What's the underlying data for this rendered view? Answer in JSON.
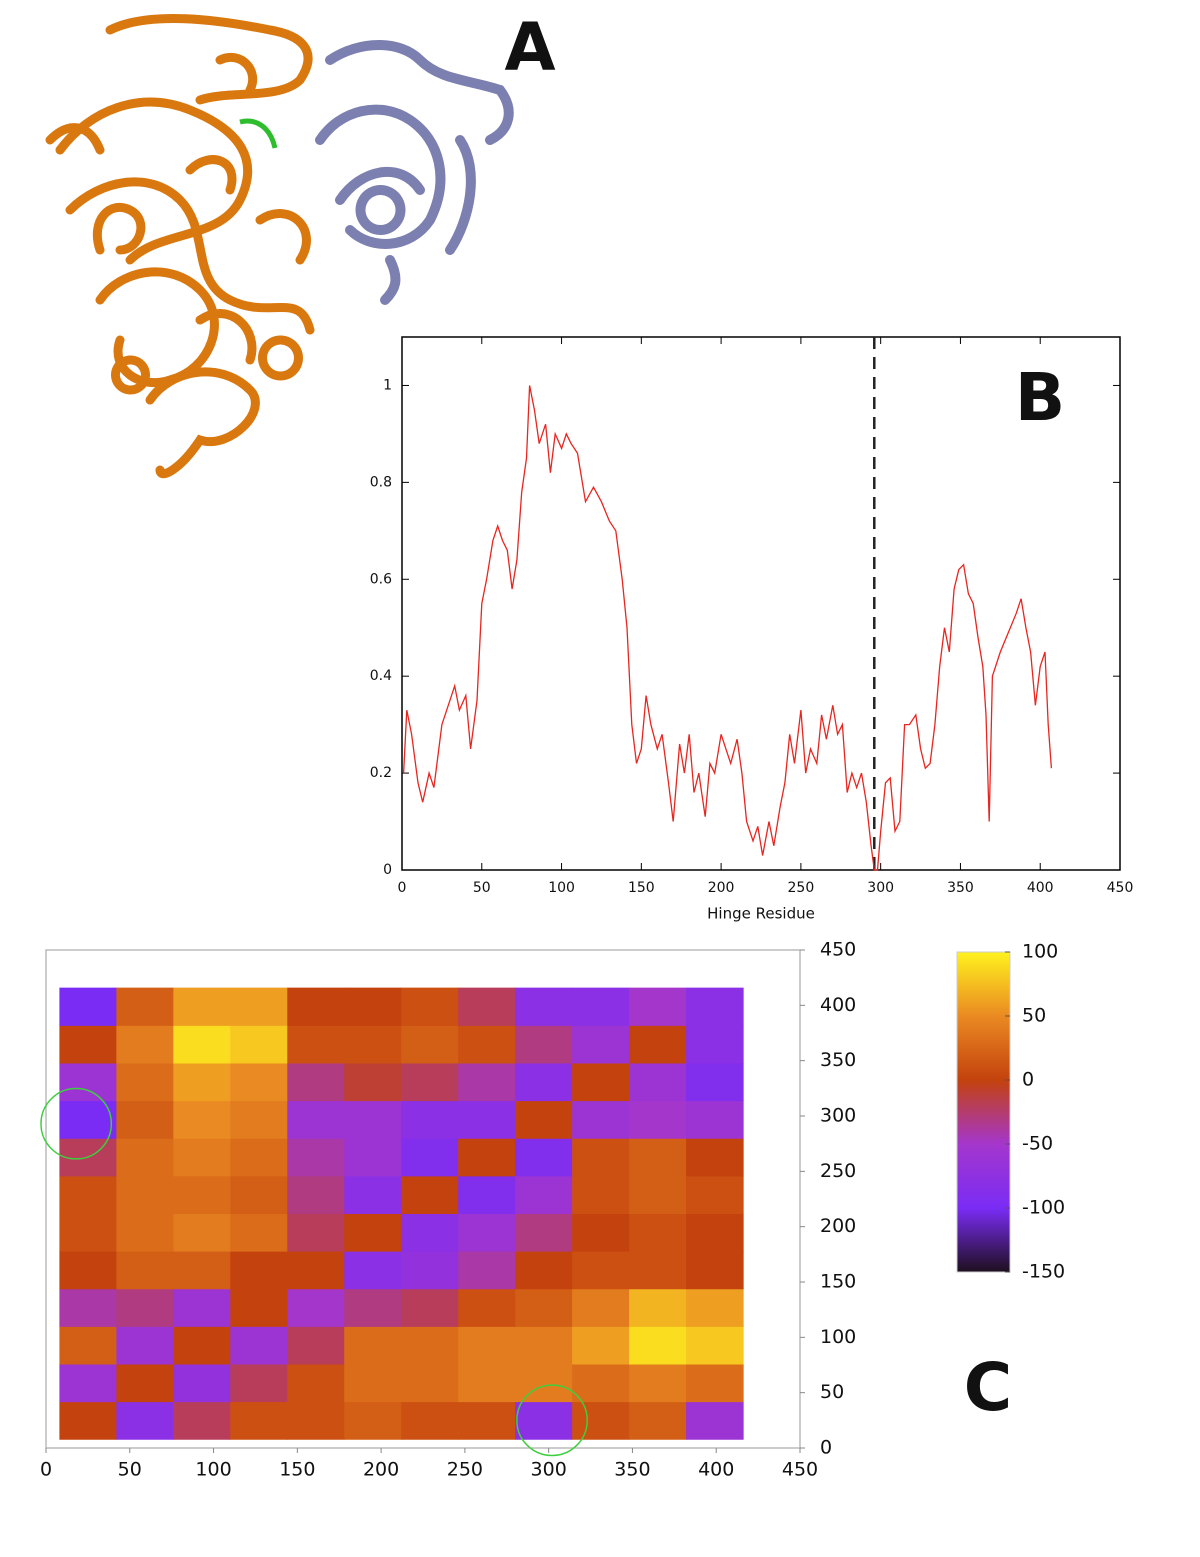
{
  "figure": {
    "panel_a": "A"
  },
  "chart_data": [
    {
      "type": "line",
      "panel_label": "B",
      "xlabel": "Hinge Residue",
      "color": "#e8251f",
      "x": [
        1,
        3,
        6,
        10,
        13,
        17,
        20,
        25,
        30,
        33,
        36,
        40,
        43,
        47,
        50,
        53,
        57,
        60,
        63,
        66,
        69,
        72,
        75,
        78,
        80,
        83,
        86,
        90,
        93,
        96,
        100,
        103,
        106,
        110,
        115,
        120,
        125,
        130,
        134,
        138,
        141,
        144,
        147,
        150,
        153,
        156,
        160,
        163,
        167,
        170,
        174,
        177,
        180,
        183,
        186,
        190,
        193,
        196,
        200,
        203,
        206,
        210,
        213,
        216,
        220,
        223,
        226,
        230,
        233,
        237,
        240,
        243,
        246,
        250,
        253,
        256,
        260,
        263,
        266,
        270,
        273,
        276,
        279,
        282,
        285,
        288,
        291,
        294,
        296,
        298,
        300,
        303,
        306,
        309,
        312,
        315,
        318,
        322,
        325,
        328,
        331,
        334,
        337,
        340,
        343,
        346,
        349,
        352,
        355,
        358,
        361,
        364,
        366,
        368,
        370,
        375,
        380,
        385,
        388,
        391,
        394,
        397,
        400,
        403,
        405,
        407
      ],
      "values": [
        0.2,
        0.33,
        0.28,
        0.18,
        0.14,
        0.2,
        0.17,
        0.3,
        0.35,
        0.38,
        0.33,
        0.36,
        0.25,
        0.35,
        0.55,
        0.6,
        0.68,
        0.71,
        0.68,
        0.66,
        0.58,
        0.64,
        0.78,
        0.85,
        1.0,
        0.95,
        0.88,
        0.92,
        0.82,
        0.9,
        0.87,
        0.9,
        0.88,
        0.86,
        0.76,
        0.79,
        0.76,
        0.72,
        0.7,
        0.6,
        0.5,
        0.3,
        0.22,
        0.25,
        0.36,
        0.3,
        0.25,
        0.28,
        0.18,
        0.1,
        0.26,
        0.2,
        0.28,
        0.16,
        0.2,
        0.11,
        0.22,
        0.2,
        0.28,
        0.25,
        0.22,
        0.27,
        0.2,
        0.1,
        0.06,
        0.09,
        0.03,
        0.1,
        0.05,
        0.13,
        0.18,
        0.28,
        0.22,
        0.33,
        0.2,
        0.25,
        0.22,
        0.32,
        0.27,
        0.34,
        0.28,
        0.3,
        0.16,
        0.2,
        0.17,
        0.2,
        0.14,
        0.05,
        0,
        0,
        0.08,
        0.18,
        0.19,
        0.08,
        0.1,
        0.3,
        0.3,
        0.32,
        0.25,
        0.21,
        0.22,
        0.3,
        0.42,
        0.5,
        0.45,
        0.58,
        0.62,
        0.63,
        0.57,
        0.55,
        0.48,
        0.42,
        0.32,
        0.1,
        0.4,
        0.45,
        0.49,
        0.53,
        0.56,
        0.5,
        0.45,
        0.34,
        0.42,
        0.45,
        0.3,
        0.21
      ],
      "vline": 296,
      "xlim": [
        0,
        450
      ],
      "xticks": [
        0,
        50,
        100,
        150,
        200,
        250,
        300,
        350,
        400,
        450
      ],
      "ylim": [
        0,
        1.1
      ],
      "yticks": [
        0,
        0.2,
        0.4,
        0.6,
        0.8,
        1
      ]
    },
    {
      "type": "heatmap",
      "panel_label": "C",
      "x": [
        25,
        59,
        93,
        127,
        161,
        195,
        229,
        263,
        297,
        331,
        365,
        399
      ],
      "y": [
        25,
        59,
        93,
        127,
        161,
        195,
        229,
        263,
        297,
        331,
        365,
        399
      ],
      "z": [
        [
          0,
          -80,
          -20,
          10,
          10,
          20,
          10,
          10,
          -80,
          10,
          20,
          -60
        ],
        [
          -60,
          0,
          -70,
          -20,
          10,
          30,
          30,
          40,
          40,
          30,
          40,
          30
        ],
        [
          20,
          -60,
          0,
          -60,
          -20,
          30,
          30,
          40,
          40,
          60,
          90,
          80
        ],
        [
          -40,
          -30,
          -60,
          0,
          -50,
          -30,
          -20,
          10,
          20,
          40,
          70,
          60
        ],
        [
          0,
          20,
          20,
          0,
          0,
          -80,
          -70,
          -40,
          0,
          10,
          10,
          0
        ],
        [
          10,
          30,
          40,
          30,
          -20,
          0,
          -80,
          -60,
          -30,
          0,
          10,
          0
        ],
        [
          10,
          30,
          30,
          20,
          -30,
          -80,
          0,
          -90,
          -60,
          10,
          20,
          10
        ],
        [
          -20,
          30,
          40,
          30,
          -40,
          -60,
          -90,
          0,
          -90,
          10,
          20,
          0
        ],
        [
          -100,
          20,
          50,
          40,
          -60,
          -60,
          -80,
          -80,
          0,
          -60,
          -50,
          -60
        ],
        [
          -60,
          30,
          60,
          50,
          -30,
          -10,
          -20,
          -40,
          -80,
          0,
          -60,
          -90
        ],
        [
          0,
          40,
          90,
          80,
          10,
          10,
          20,
          10,
          -30,
          -60,
          0,
          -80
        ],
        [
          -100,
          20,
          60,
          60,
          0,
          0,
          10,
          -20,
          -80,
          -80,
          -50,
          -80
        ]
      ],
      "circles": [
        {
          "x": 18,
          "y": 293,
          "r": 21,
          "color": "#3ecf3e"
        },
        {
          "x": 302,
          "y": 25,
          "r": 21,
          "color": "#3ecf3e"
        }
      ],
      "xlim": [
        0,
        450
      ],
      "xticks": [
        0,
        50,
        100,
        150,
        200,
        250,
        300,
        350,
        400,
        450
      ],
      "ylim": [
        0,
        450
      ],
      "yticks": [
        0,
        50,
        100,
        150,
        200,
        250,
        300,
        350,
        400,
        450
      ],
      "colorbar_ticks": [
        -150,
        -100,
        -50,
        0,
        50,
        100
      ],
      "colorbar_colors": [
        "#1e0f1e",
        "#7a2cf5",
        "#a436cc",
        "#c4420e",
        "#ea8a22",
        "#fff21e"
      ]
    }
  ]
}
